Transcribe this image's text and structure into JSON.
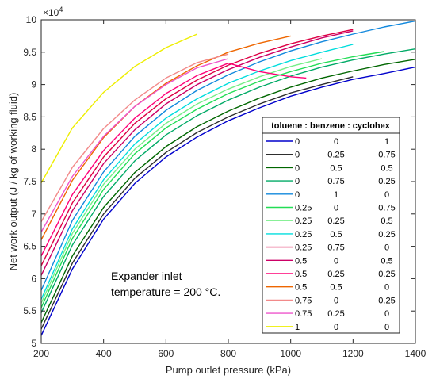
{
  "chart_data": {
    "type": "line",
    "xlabel": "Pump outlet pressure (kPa)",
    "ylabel": "Net work output (J / kg of working fluid)",
    "y_exponent_label": "×10",
    "y_exponent_power": "4",
    "xlim": [
      200,
      1400
    ],
    "ylim": [
      5,
      10
    ],
    "x_ticks": [
      200,
      400,
      600,
      800,
      1000,
      1200,
      1400
    ],
    "y_ticks": [
      5,
      5.5,
      6,
      6.5,
      7,
      7.5,
      8,
      8.5,
      9,
      9.5,
      10
    ],
    "x_tick_labels": [
      "200",
      "400",
      "600",
      "800",
      "1000",
      "1200",
      "1400"
    ],
    "y_tick_labels": [
      "5",
      "5.5",
      "6",
      "6.5",
      "7",
      "7.5",
      "8",
      "8.5",
      "9",
      "9.5",
      "10"
    ],
    "annotation_lines": [
      "Expander inlet",
      "temperature = 200 °C."
    ],
    "legend": {
      "title": "toluene : benzene : cyclohex",
      "position": "right"
    },
    "series": [
      {
        "label": [
          "0",
          "0",
          "1"
        ],
        "color": "#0000cc",
        "x": [
          200,
          300,
          400,
          500,
          600,
          700,
          800,
          900,
          1000,
          1100,
          1200,
          1300,
          1400
        ],
        "y": [
          5.12,
          6.15,
          6.92,
          7.47,
          7.88,
          8.19,
          8.44,
          8.64,
          8.82,
          8.96,
          9.08,
          9.17,
          9.27
        ]
      },
      {
        "label": [
          "0",
          "0.25",
          "0.75"
        ],
        "color": "#2e2e2e",
        "x": [
          200,
          300,
          400,
          500,
          600,
          700,
          800,
          900,
          1000,
          1100,
          1200
        ],
        "y": [
          5.22,
          6.24,
          7.0,
          7.55,
          7.95,
          8.26,
          8.5,
          8.7,
          8.87,
          9.0,
          9.12
        ]
      },
      {
        "label": [
          "0",
          "0.5",
          "0.5"
        ],
        "color": "#006600",
        "x": [
          200,
          300,
          400,
          500,
          600,
          700,
          800,
          900,
          1000,
          1100,
          1200,
          1300,
          1400
        ],
        "y": [
          5.32,
          6.35,
          7.1,
          7.64,
          8.04,
          8.35,
          8.59,
          8.79,
          8.96,
          9.1,
          9.21,
          9.31,
          9.39
        ]
      },
      {
        "label": [
          "0",
          "0.75",
          "0.25"
        ],
        "color": "#00aa66",
        "x": [
          200,
          300,
          400,
          500,
          600,
          700,
          800,
          900,
          1000,
          1100,
          1200,
          1300,
          1400
        ],
        "y": [
          5.47,
          6.52,
          7.27,
          7.82,
          8.22,
          8.52,
          8.76,
          8.96,
          9.13,
          9.27,
          9.38,
          9.47,
          9.55
        ]
      },
      {
        "label": [
          "0",
          "1",
          "0"
        ],
        "color": "#1188dd",
        "x": [
          200,
          300,
          400,
          500,
          600,
          700,
          800,
          900,
          1000,
          1100,
          1200,
          1300,
          1400
        ],
        "y": [
          5.82,
          6.9,
          7.65,
          8.2,
          8.6,
          8.91,
          9.15,
          9.35,
          9.52,
          9.66,
          9.78,
          9.89,
          9.98
        ]
      },
      {
        "label": [
          "0.25",
          "0",
          "0.75"
        ],
        "color": "#22dd55",
        "x": [
          200,
          300,
          400,
          500,
          600,
          700,
          800,
          900,
          1000,
          1100,
          1200,
          1300
        ],
        "y": [
          5.55,
          6.62,
          7.38,
          7.93,
          8.33,
          8.62,
          8.86,
          9.05,
          9.2,
          9.33,
          9.43,
          9.51
        ]
      },
      {
        "label": [
          "0.25",
          "0.25",
          "0.5"
        ],
        "color": "#77ee88",
        "x": [
          200,
          300,
          400,
          500,
          600,
          700,
          800,
          900,
          1000,
          1100
        ],
        "y": [
          5.62,
          6.7,
          7.46,
          8.0,
          8.4,
          8.7,
          8.93,
          9.12,
          9.28,
          9.4
        ]
      },
      {
        "label": [
          "0.25",
          "0.5",
          "0.25"
        ],
        "color": "#00dddd",
        "x": [
          200,
          300,
          400,
          500,
          600,
          700,
          800,
          900,
          1000,
          1100,
          1200
        ],
        "y": [
          5.68,
          6.77,
          7.53,
          8.08,
          8.48,
          8.78,
          9.02,
          9.21,
          9.37,
          9.5,
          9.62
        ]
      },
      {
        "label": [
          "0.25",
          "0.75",
          "0"
        ],
        "color": "#dd0044",
        "x": [
          200,
          300,
          400,
          500,
          600,
          700,
          800,
          900,
          1000,
          1100,
          1200
        ],
        "y": [
          6.2,
          7.17,
          7.88,
          8.4,
          8.78,
          9.07,
          9.3,
          9.48,
          9.63,
          9.75,
          9.85
        ]
      },
      {
        "label": [
          "0.5",
          "0",
          "0.5"
        ],
        "color": "#cc0066",
        "x": [
          200,
          300,
          400,
          500,
          600,
          700,
          800,
          900,
          1000,
          1100,
          1200
        ],
        "y": [
          6.05,
          7.05,
          7.78,
          8.3,
          8.7,
          9.0,
          9.23,
          9.42,
          9.58,
          9.72,
          9.83
        ]
      },
      {
        "label": [
          "0.5",
          "0.25",
          "0.25"
        ],
        "color": "#ff0077",
        "x": [
          200,
          300,
          400,
          500,
          600,
          700,
          800,
          900,
          1000,
          1050
        ],
        "y": [
          6.35,
          7.3,
          7.98,
          8.48,
          8.86,
          9.14,
          9.33,
          9.2,
          9.12,
          9.1
        ]
      },
      {
        "label": [
          "0.5",
          "0.5",
          "0"
        ],
        "color": "#ee6600",
        "x": [
          200,
          300,
          400,
          500,
          600,
          700,
          800,
          900,
          1000
        ],
        "y": [
          6.6,
          7.52,
          8.18,
          8.66,
          9.02,
          9.29,
          9.5,
          9.64,
          9.75
        ]
      },
      {
        "label": [
          "0.75",
          "0",
          "0.25"
        ],
        "color": "#f28a8a",
        "x": [
          200,
          300,
          400,
          500,
          600,
          700,
          800
        ],
        "y": [
          6.88,
          7.72,
          8.32,
          8.76,
          9.1,
          9.34,
          9.47
        ]
      },
      {
        "label": [
          "0.75",
          "0.25",
          "0"
        ],
        "color": "#ee55cc",
        "x": [
          200,
          300,
          400,
          500,
          600,
          700,
          800
        ],
        "y": [
          6.72,
          7.58,
          8.2,
          8.66,
          9.0,
          9.26,
          9.4
        ]
      },
      {
        "label": [
          "1",
          "0",
          "0"
        ],
        "color": "#eeee00",
        "x": [
          200,
          300,
          400,
          500,
          600,
          700
        ],
        "y": [
          7.48,
          8.33,
          8.88,
          9.28,
          9.57,
          9.78
        ]
      }
    ]
  }
}
